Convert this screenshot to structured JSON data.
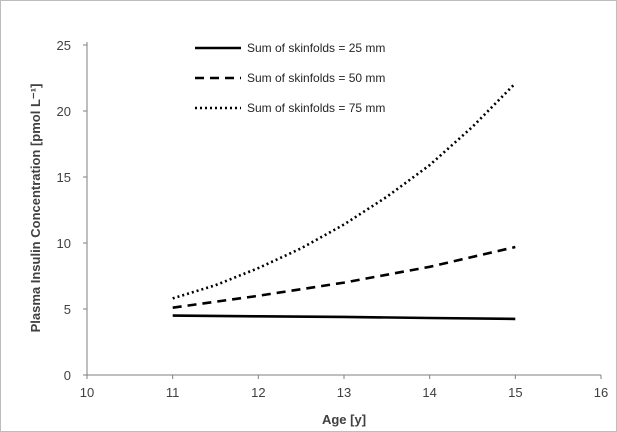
{
  "chart_data": {
    "type": "line",
    "title": "",
    "xlabel": "Age [y]",
    "ylabel": "Plasma Insulin Concentration [pmol L⁻¹]",
    "xlim": [
      10,
      16
    ],
    "ylim": [
      0,
      25
    ],
    "x_ticks": [
      10,
      11,
      12,
      13,
      14,
      15,
      16
    ],
    "y_ticks": [
      0,
      5,
      10,
      15,
      20,
      25
    ],
    "grid": false,
    "legend_position": "top-center",
    "series": [
      {
        "name": "Sum of skinfolds = 25 mm",
        "style": "solid",
        "color": "#000000",
        "x": [
          11,
          12,
          13,
          14,
          15
        ],
        "y": [
          4.5,
          4.45,
          4.4,
          4.32,
          4.25
        ]
      },
      {
        "name": "Sum of skinfolds = 50 mm",
        "style": "dashed",
        "color": "#000000",
        "x": [
          11,
          12,
          13,
          14,
          15
        ],
        "y": [
          5.1,
          6.0,
          7.0,
          8.2,
          9.7
        ]
      },
      {
        "name": "Sum of skinfolds = 75 mm",
        "style": "dotted",
        "color": "#000000",
        "x": [
          11,
          11.5,
          12,
          12.5,
          13,
          13.5,
          14,
          14.5,
          15
        ],
        "y": [
          5.8,
          6.8,
          8.1,
          9.6,
          11.4,
          13.5,
          15.9,
          18.8,
          22.1
        ]
      }
    ]
  }
}
